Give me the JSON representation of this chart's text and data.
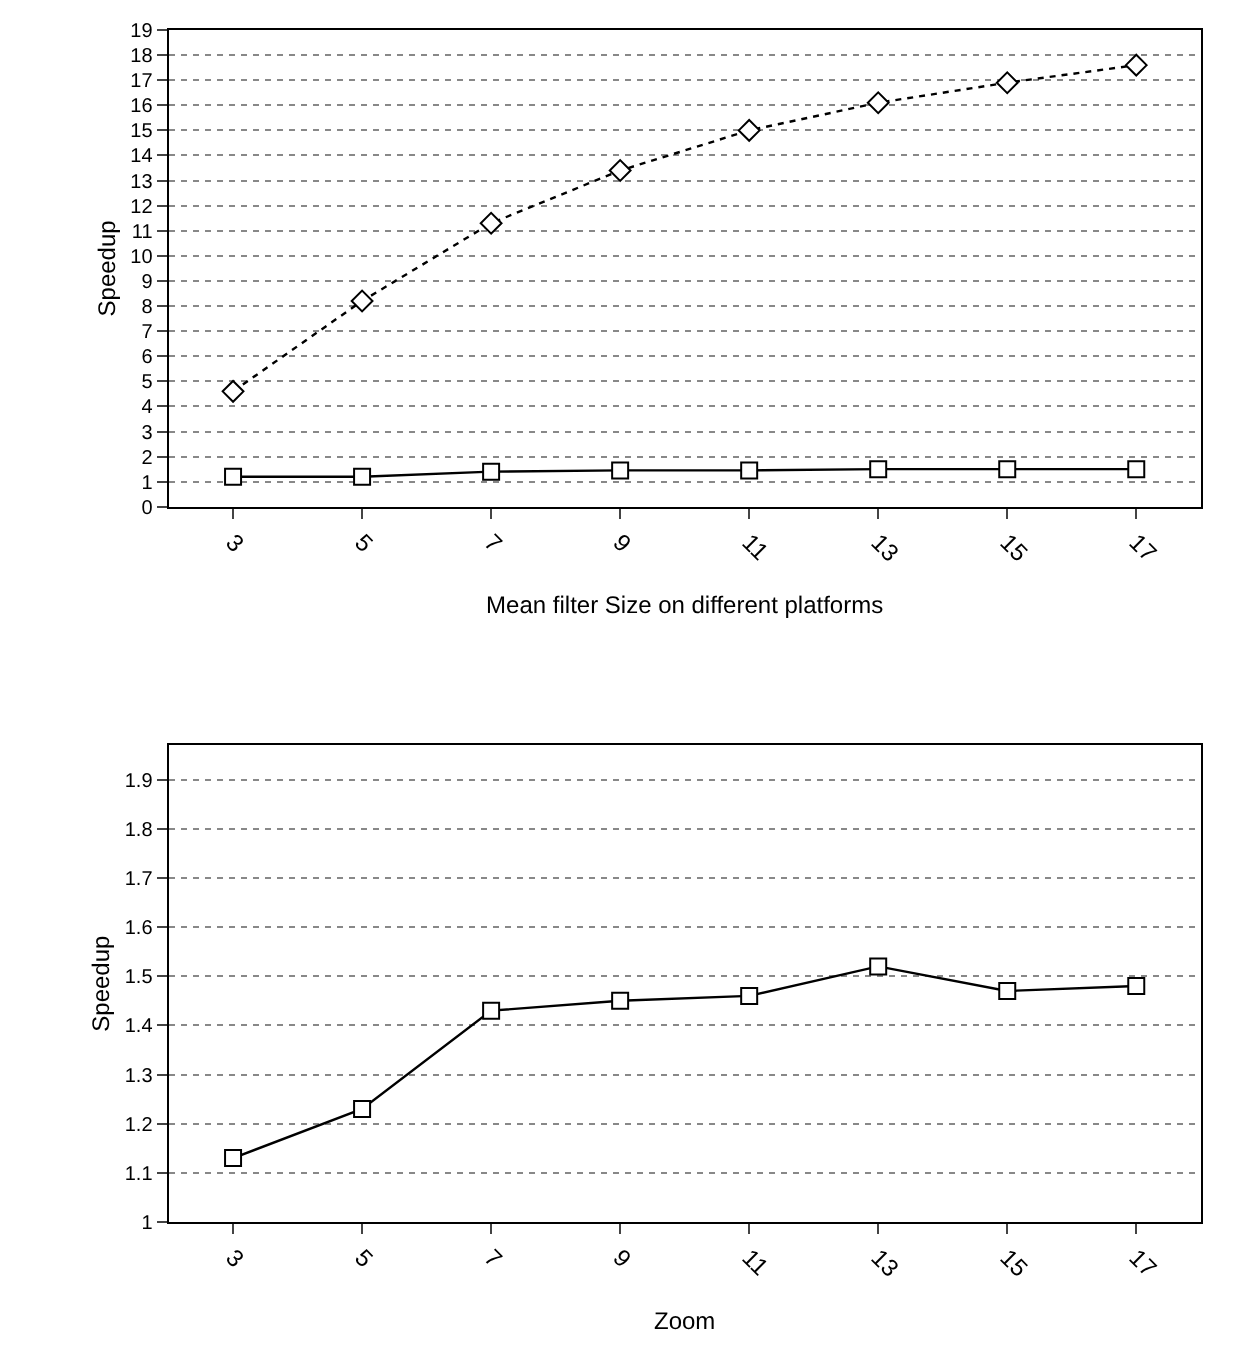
{
  "chart_data": [
    {
      "type": "line",
      "xlabel": "Mean filter Size on different platforms",
      "ylabel": "Speedup",
      "categories": [
        "3",
        "5",
        "7",
        "9",
        "11",
        "13",
        "15",
        "17"
      ],
      "series": [
        {
          "color": "#000000",
          "values": [
            1.2,
            1.2,
            1.4,
            1.45,
            1.45,
            1.5,
            1.5,
            1.5
          ],
          "marker": "square",
          "line_style": "solid"
        },
        {
          "color": "#000000",
          "values": [
            4.6,
            8.2,
            11.3,
            13.4,
            15.0,
            16.1,
            16.9,
            17.6
          ],
          "marker": "diamond",
          "line_style": "dotted"
        }
      ],
      "ylim": [
        0,
        19
      ],
      "yticks": [
        0,
        1,
        2,
        3,
        4,
        5,
        6,
        7,
        8,
        9,
        10,
        11,
        12,
        13,
        14,
        15,
        16,
        17,
        18,
        19
      ],
      "grid": "y"
    },
    {
      "type": "line",
      "xlabel": "Zoom",
      "ylabel": "Speedup",
      "categories": [
        "3",
        "5",
        "7",
        "9",
        "11",
        "13",
        "15",
        "17"
      ],
      "series": [
        {
          "color": "#000000",
          "values": [
            1.13,
            1.23,
            1.43,
            1.45,
            1.46,
            1.52,
            1.47,
            1.48
          ],
          "marker": "square",
          "line_style": "solid"
        }
      ],
      "ylim": [
        1,
        1.97
      ],
      "yticks": [
        1,
        1.1,
        1.2,
        1.3,
        1.4,
        1.5,
        1.6,
        1.7,
        1.8,
        1.9
      ],
      "grid": "y"
    }
  ]
}
